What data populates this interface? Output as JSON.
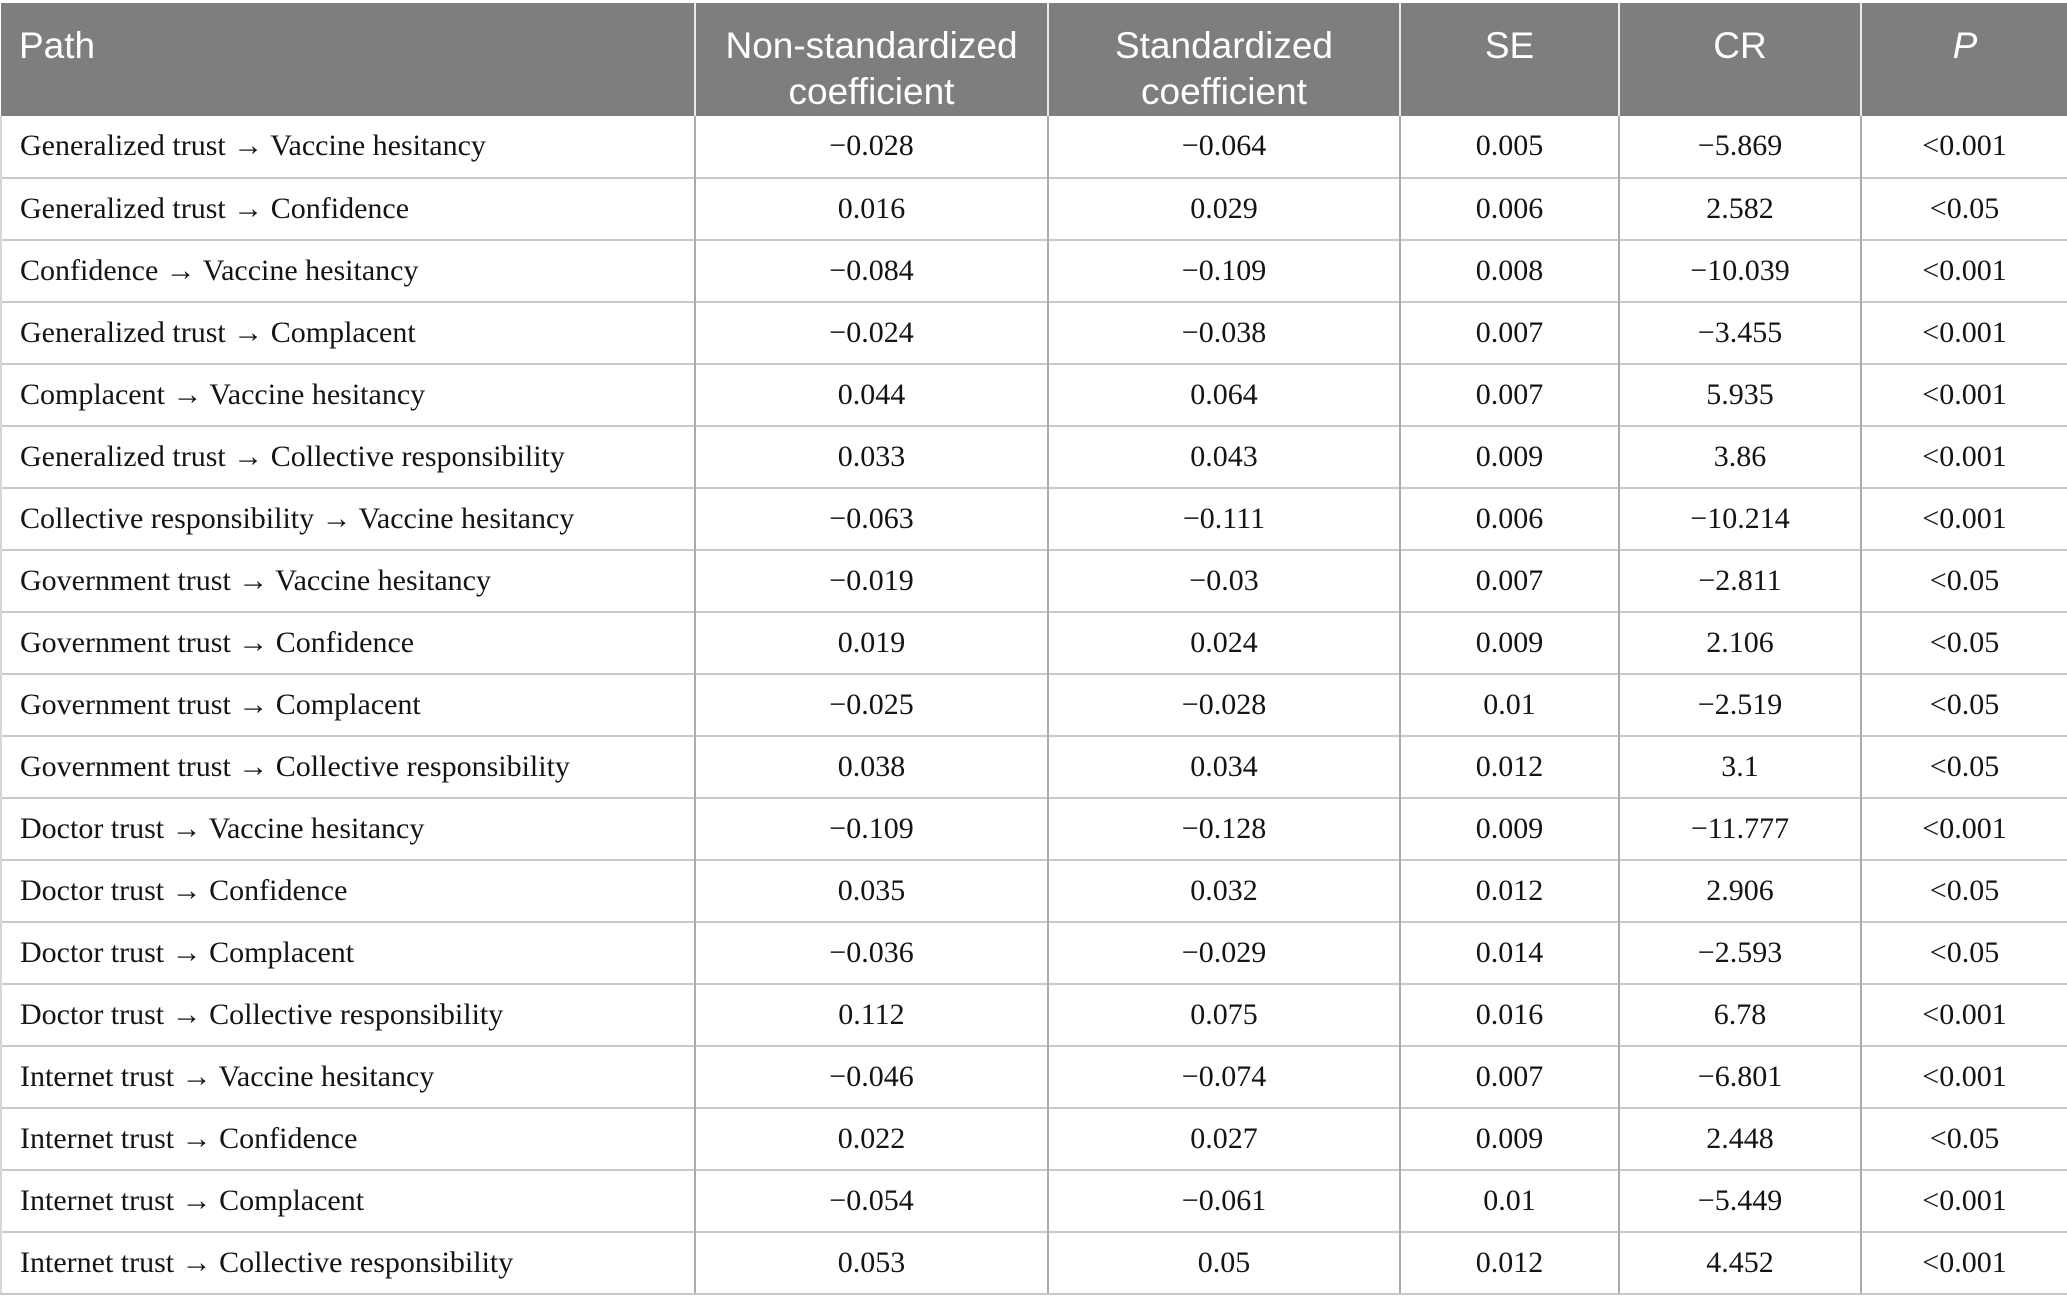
{
  "table": {
    "columns": [
      {
        "label": "Path"
      },
      {
        "label": "Non-standardized coefficient"
      },
      {
        "label": "Standardized coefficient"
      },
      {
        "label": "SE"
      },
      {
        "label": "CR"
      },
      {
        "label": "P"
      }
    ],
    "rows": [
      [
        "Generalized trust → Vaccine hesitancy",
        "−0.028",
        "−0.064",
        "0.005",
        "−5.869",
        "<0.001"
      ],
      [
        "Generalized trust → Confidence",
        "0.016",
        "0.029",
        "0.006",
        "2.582",
        "<0.05"
      ],
      [
        "Confidence → Vaccine hesitancy",
        "−0.084",
        "−0.109",
        "0.008",
        "−10.039",
        "<0.001"
      ],
      [
        "Generalized trust → Complacent",
        "−0.024",
        "−0.038",
        "0.007",
        "−3.455",
        "<0.001"
      ],
      [
        "Complacent → Vaccine hesitancy",
        "0.044",
        "0.064",
        "0.007",
        "5.935",
        "<0.001"
      ],
      [
        "Generalized trust → Collective responsibility",
        "0.033",
        "0.043",
        "0.009",
        "3.86",
        "<0.001"
      ],
      [
        "Collective responsibility → Vaccine hesitancy",
        "−0.063",
        "−0.111",
        "0.006",
        "−10.214",
        "<0.001"
      ],
      [
        "Government trust → Vaccine hesitancy",
        "−0.019",
        "−0.03",
        "0.007",
        "−2.811",
        "<0.05"
      ],
      [
        "Government trust → Confidence",
        "0.019",
        "0.024",
        "0.009",
        "2.106",
        "<0.05"
      ],
      [
        "Government trust → Complacent",
        "−0.025",
        "−0.028",
        "0.01",
        "−2.519",
        "<0.05"
      ],
      [
        "Government trust → Collective responsibility",
        "0.038",
        "0.034",
        "0.012",
        "3.1",
        "<0.05"
      ],
      [
        "Doctor trust → Vaccine hesitancy",
        "−0.109",
        "−0.128",
        "0.009",
        "−11.777",
        "<0.001"
      ],
      [
        "Doctor trust → Confidence",
        "0.035",
        "0.032",
        "0.012",
        "2.906",
        "<0.05"
      ],
      [
        "Doctor trust → Complacent",
        "−0.036",
        "−0.029",
        "0.014",
        "−2.593",
        "<0.05"
      ],
      [
        "Doctor trust → Collective responsibility",
        "0.112",
        "0.075",
        "0.016",
        "6.78",
        "<0.001"
      ],
      [
        "Internet trust → Vaccine hesitancy",
        "−0.046",
        "−0.074",
        "0.007",
        "−6.801",
        "<0.001"
      ],
      [
        "Internet trust → Confidence",
        "0.022",
        "0.027",
        "0.009",
        "2.448",
        "<0.05"
      ],
      [
        "Internet trust → Complacent",
        "−0.054",
        "−0.061",
        "0.01",
        "−5.449",
        "<0.001"
      ],
      [
        "Internet trust → Collective responsibility",
        "0.053",
        "0.05",
        "0.012",
        "4.452",
        "<0.001"
      ]
    ],
    "colors": {
      "header_bg": "#7d7e7e",
      "header_text": "#ffffff",
      "row_divider": "#c9c9c9",
      "column_divider": "#acacac",
      "body_text": "#141414"
    }
  }
}
